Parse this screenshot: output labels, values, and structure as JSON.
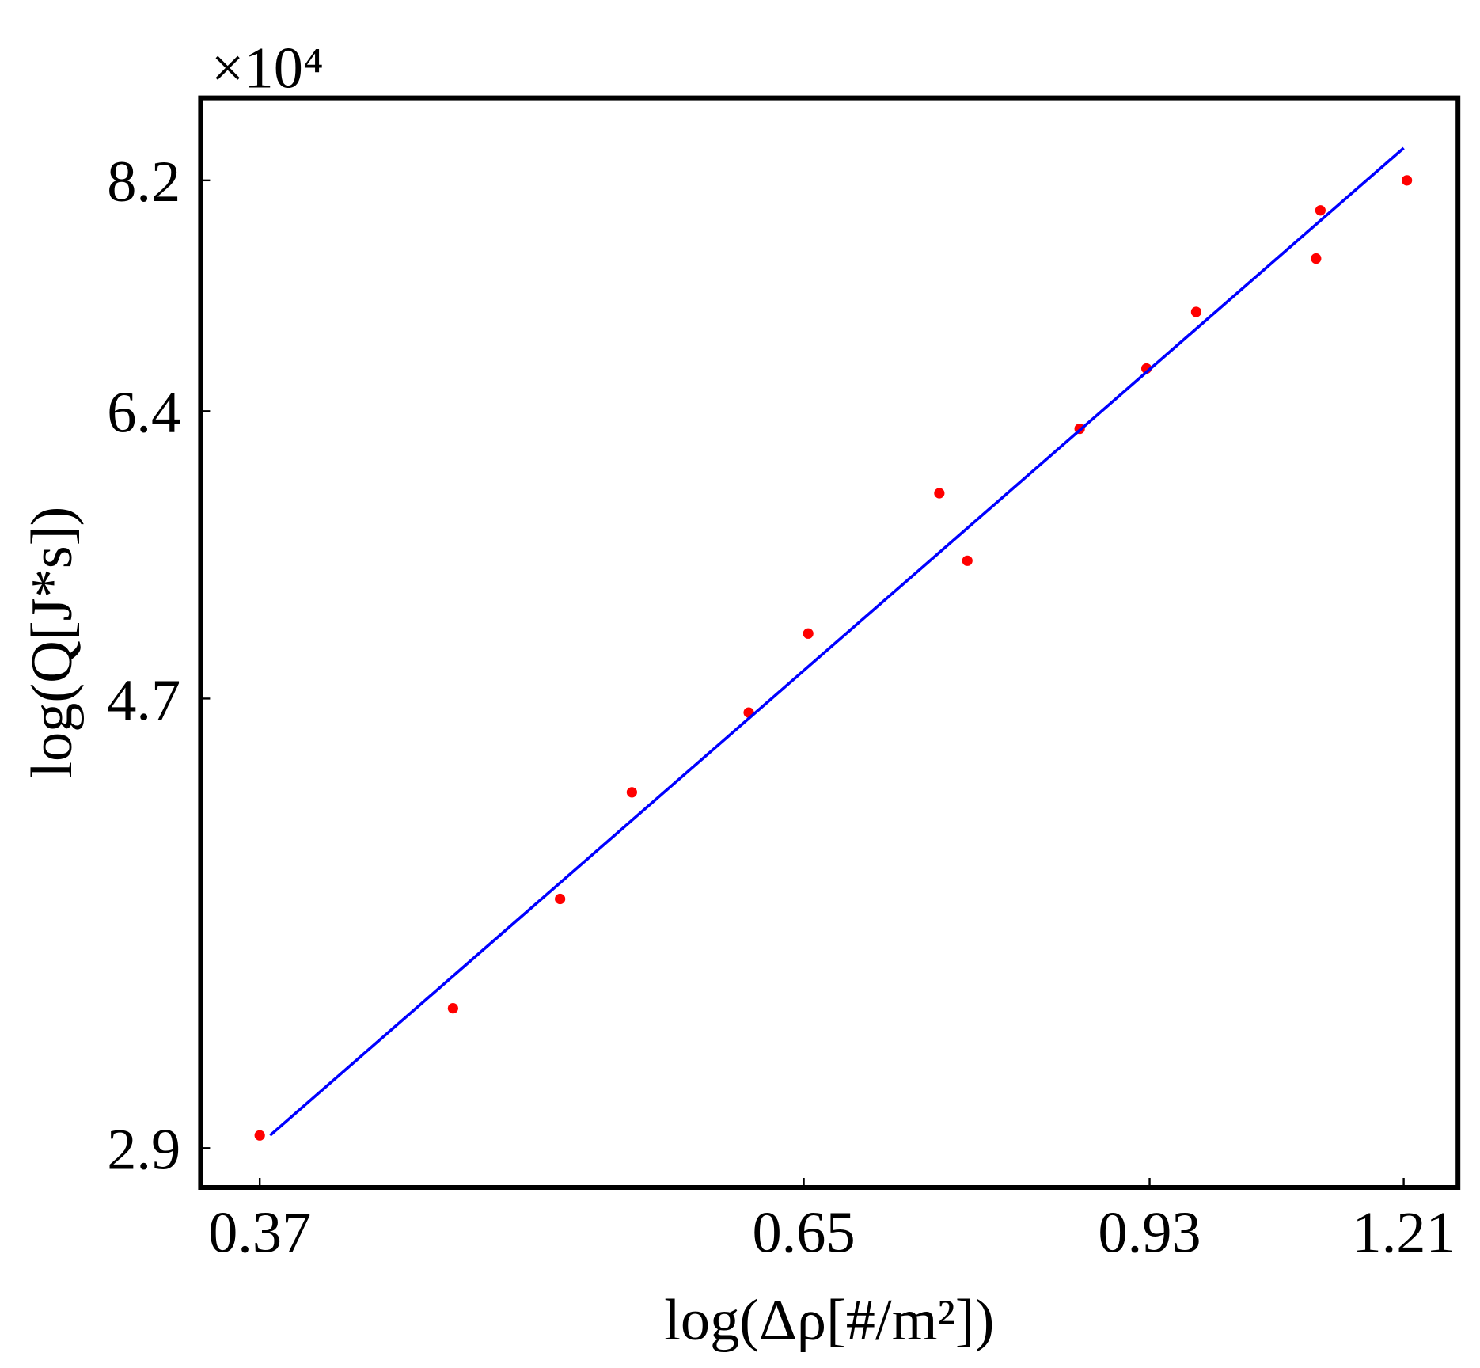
{
  "chart_data": {
    "type": "scatter",
    "y_multiplier": "×10⁴",
    "xlabel": "log(Δρ[#/m²])",
    "ylabel": "log(Q[J*s])",
    "log_x": true,
    "log_y": true,
    "xlim": [
      0.348,
      1.28
    ],
    "ylim": [
      2.78,
      8.96
    ],
    "xticks": [
      0.37,
      0.65,
      0.93,
      1.21
    ],
    "yticks": [
      2.9,
      4.7,
      6.4,
      8.2
    ],
    "series": [
      {
        "color": "#ff0000",
        "x": [
          0.37,
          0.452,
          0.505,
          0.544,
          0.614,
          0.653,
          0.748,
          0.77,
          0.865,
          0.927,
          0.976,
          1.105,
          1.11,
          1.214
        ],
        "values": [
          2.94,
          3.37,
          3.79,
          4.25,
          4.63,
          5.04,
          5.86,
          5.45,
          6.28,
          6.7,
          7.12,
          7.54,
          7.94,
          8.2
        ]
      },
      {
        "type": "line",
        "color": "#0000ff",
        "x": [
          0.374,
          1.21
        ],
        "values": [
          2.94,
          8.49
        ]
      }
    ]
  }
}
